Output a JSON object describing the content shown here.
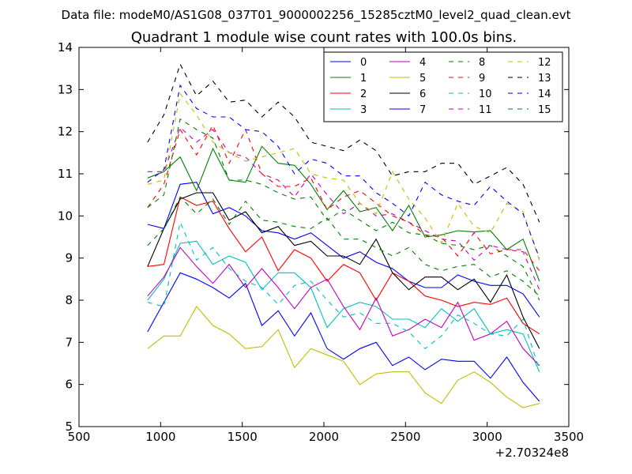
{
  "chart_data": {
    "type": "line",
    "suptitle": "Data file: modeM0/AS1G08_037T01_9000002256_15285cztM0_level2_quad_clean.evt",
    "title": "Quadrant 1 module wise count rates with 100.0s bins.",
    "xlabel": "",
    "ylabel": "",
    "x_offset_label": "+2.70324e8",
    "xlim": [
      500,
      3500
    ],
    "ylim": [
      5,
      14
    ],
    "x_ticks": [
      500,
      1000,
      1500,
      2000,
      2500,
      3000,
      3500
    ],
    "y_ticks": [
      5,
      6,
      7,
      8,
      9,
      10,
      11,
      12,
      13,
      14
    ],
    "x_tick_labels": [
      "500",
      "1000",
      "1500",
      "2000",
      "2500",
      "3000",
      "3500"
    ],
    "y_tick_labels": [
      "5",
      "6",
      "7",
      "8",
      "9",
      "10",
      "11",
      "12",
      "13",
      "14"
    ],
    "grid": false,
    "legend_position": "top-right",
    "x": [
      920,
      1020,
      1120,
      1220,
      1320,
      1420,
      1520,
      1620,
      1720,
      1820,
      1920,
      2020,
      2120,
      2220,
      2320,
      2420,
      2520,
      2620,
      2720,
      2820,
      2920,
      3020,
      3120,
      3220,
      3320
    ],
    "series": [
      {
        "name": "0",
        "color": "#0000ff",
        "dash": "solid",
        "values": [
          9.8,
          9.7,
          10.75,
          10.8,
          10.05,
          10.2,
          10.0,
          9.65,
          9.6,
          9.45,
          9.6,
          9.3,
          9.0,
          9.15,
          8.9,
          8.75,
          8.45,
          8.3,
          8.3,
          8.6,
          8.45,
          8.35,
          8.35,
          8.15,
          7.6
        ]
      },
      {
        "name": "1",
        "color": "#008000",
        "dash": "solid",
        "values": [
          10.9,
          11.05,
          11.4,
          10.6,
          11.6,
          10.85,
          10.8,
          11.65,
          11.25,
          11.2,
          10.75,
          10.15,
          10.6,
          10.1,
          10.2,
          9.65,
          10.25,
          9.5,
          9.55,
          9.65,
          9.62,
          9.65,
          9.2,
          9.45,
          8.45
        ]
      },
      {
        "name": "2",
        "color": "#ff0000",
        "dash": "solid",
        "values": [
          8.8,
          8.85,
          10.45,
          10.25,
          10.35,
          9.7,
          9.15,
          9.5,
          8.7,
          9.2,
          9.0,
          8.45,
          8.85,
          8.65,
          8.0,
          8.65,
          8.45,
          8.1,
          8.0,
          7.85,
          7.95,
          7.9,
          8.05,
          7.45,
          7.2
        ]
      },
      {
        "name": "3",
        "color": "#00bfbf",
        "dash": "solid",
        "values": [
          8.0,
          8.5,
          9.35,
          9.4,
          8.85,
          9.05,
          8.9,
          8.25,
          8.65,
          8.65,
          8.3,
          7.35,
          7.8,
          7.95,
          7.85,
          7.55,
          7.55,
          7.35,
          7.8,
          7.5,
          7.8,
          7.2,
          7.3,
          7.2,
          6.3
        ]
      },
      {
        "name": "4",
        "color": "#bf00bf",
        "dash": "solid",
        "values": [
          8.1,
          8.55,
          9.25,
          8.8,
          8.4,
          8.85,
          8.3,
          8.75,
          8.3,
          7.8,
          8.3,
          8.5,
          7.85,
          7.3,
          8.05,
          7.15,
          7.3,
          7.55,
          7.35,
          7.95,
          7.05,
          7.2,
          7.5,
          6.85,
          6.45
        ]
      },
      {
        "name": "5",
        "color": "#bfbf00",
        "dash": "solid",
        "values": [
          6.85,
          7.15,
          7.15,
          7.85,
          7.4,
          7.2,
          6.85,
          6.9,
          7.3,
          6.4,
          6.85,
          6.7,
          6.55,
          6.0,
          6.25,
          6.3,
          6.3,
          5.8,
          5.55,
          6.1,
          6.3,
          6.05,
          5.7,
          5.45,
          5.55
        ]
      },
      {
        "name": "6",
        "color": "#000000",
        "dash": "solid",
        "values": [
          8.8,
          9.7,
          10.4,
          10.55,
          10.55,
          9.9,
          10.1,
          9.6,
          9.75,
          9.3,
          9.4,
          9.05,
          9.05,
          8.85,
          9.45,
          8.65,
          8.25,
          8.55,
          8.55,
          8.25,
          8.5,
          7.95,
          8.6,
          7.6,
          6.85
        ]
      },
      {
        "name": "7",
        "color": "#0000ff",
        "dash": "solid",
        "values": [
          7.25,
          7.95,
          8.65,
          8.5,
          8.3,
          8.05,
          8.4,
          7.4,
          7.75,
          7.15,
          7.7,
          6.85,
          6.6,
          6.85,
          7.0,
          6.45,
          6.65,
          6.35,
          6.6,
          6.55,
          6.55,
          6.15,
          6.65,
          6.05,
          5.6
        ]
      },
      {
        "name": "8",
        "color": "#008000",
        "dash": "dashed",
        "values": [
          9.3,
          9.7,
          10.45,
          10.05,
          10.4,
          9.8,
          10.35,
          9.9,
          9.85,
          9.75,
          9.7,
          9.95,
          9.45,
          9.45,
          9.25,
          9.05,
          9.25,
          8.85,
          8.7,
          8.8,
          8.85,
          8.55,
          8.7,
          8.45,
          8.1
        ]
      },
      {
        "name": "9",
        "color": "#ff0000",
        "dash": "dashed",
        "values": [
          10.2,
          10.75,
          12.05,
          11.45,
          12.15,
          11.25,
          12.05,
          11.0,
          10.7,
          10.7,
          10.9,
          10.15,
          10.45,
          10.6,
          10.3,
          10.0,
          9.85,
          9.55,
          9.5,
          9.05,
          9.6,
          9.1,
          9.2,
          9.2,
          8.7
        ]
      },
      {
        "name": "10",
        "color": "#00bfbf",
        "dash": "dashed",
        "values": [
          7.95,
          7.85,
          9.85,
          8.95,
          9.25,
          8.75,
          8.45,
          8.3,
          7.9,
          8.35,
          8.45,
          8.0,
          7.6,
          7.7,
          7.45,
          7.45,
          7.25,
          6.85,
          7.15,
          7.65,
          7.45,
          7.2,
          7.15,
          7.55,
          6.35
        ]
      },
      {
        "name": "11",
        "color": "#bf00bf",
        "dash": "dashed",
        "values": [
          11.05,
          11.05,
          12.1,
          11.75,
          12.05,
          11.5,
          11.4,
          11.0,
          10.85,
          10.45,
          11.0,
          10.5,
          10.05,
          10.3,
          10.0,
          10.05,
          9.85,
          9.65,
          9.45,
          9.4,
          8.95,
          9.3,
          9.2,
          9.15,
          8.25
        ]
      },
      {
        "name": "12",
        "color": "#bfbf00",
        "dash": "dashed",
        "values": [
          10.75,
          10.85,
          12.9,
          12.4,
          11.75,
          11.5,
          11.3,
          11.4,
          11.5,
          11.6,
          11.0,
          10.9,
          10.85,
          10.3,
          10.05,
          11.05,
          10.4,
          9.95,
          9.35,
          10.3,
          9.75,
          9.6,
          10.3,
          10.1,
          8.95
        ]
      },
      {
        "name": "13",
        "color": "#000000",
        "dash": "dashed",
        "values": [
          11.75,
          12.4,
          13.6,
          12.85,
          13.2,
          12.7,
          12.75,
          12.35,
          12.7,
          12.35,
          11.75,
          11.65,
          11.55,
          11.8,
          11.55,
          10.95,
          11.05,
          11.05,
          11.25,
          11.25,
          10.75,
          10.95,
          11.15,
          10.75,
          9.85
        ]
      },
      {
        "name": "14",
        "color": "#0000ff",
        "dash": "dashed",
        "values": [
          10.8,
          11.1,
          13.1,
          12.55,
          12.35,
          12.35,
          12.05,
          12.0,
          11.65,
          11.0,
          11.35,
          11.25,
          10.95,
          10.95,
          10.55,
          10.3,
          10.0,
          10.8,
          10.5,
          10.35,
          10.25,
          10.7,
          10.35,
          10.05,
          9.0
        ]
      },
      {
        "name": "15",
        "color": "#008000",
        "dash": "dashed",
        "values": [
          10.2,
          10.5,
          12.3,
          12.05,
          11.85,
          10.85,
          10.85,
          10.75,
          10.55,
          10.4,
          10.45,
          9.9,
          10.15,
          9.9,
          9.65,
          9.85,
          9.6,
          9.55,
          9.35,
          9.3,
          9.2,
          9.3,
          9.05,
          8.8,
          8.0
        ]
      }
    ]
  }
}
